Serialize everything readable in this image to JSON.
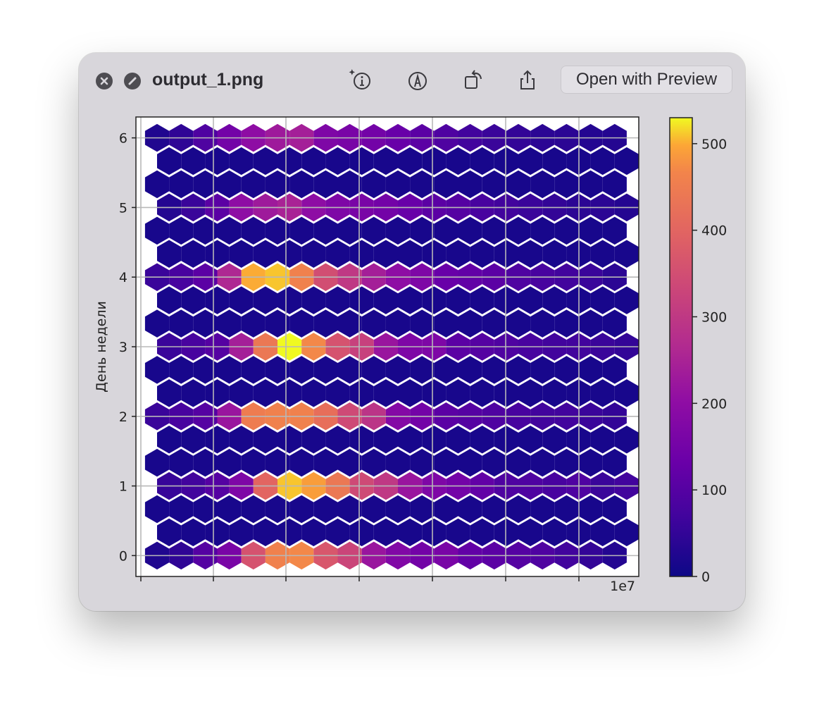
{
  "window": {
    "filename": "output_1.png",
    "open_button_label": "Open with Preview"
  },
  "toolbar": {
    "icons": [
      "close-icon",
      "fullscreen-icon",
      "info-icon",
      "markup-icon",
      "rotate-icon",
      "share-icon"
    ]
  },
  "chart_data": {
    "type": "heatmap",
    "subtype": "hexbin",
    "colormap": "plasma",
    "ylabel": "День недели",
    "xlabel": "",
    "x_offset_label": "1e7",
    "yticks": [
      "0",
      "1",
      "2",
      "3",
      "4",
      "5",
      "6"
    ],
    "ylim": [
      -0.3,
      6.3
    ],
    "colorbar": {
      "ticks": [
        "0",
        "100",
        "200",
        "300",
        "400",
        "500"
      ],
      "range": [
        0,
        530
      ]
    },
    "grid": true,
    "column_count": 20,
    "rows": [
      {
        "y": 0,
        "values": [
          25,
          45,
          100,
          160,
          360,
          460,
          470,
          370,
          330,
          220,
          175,
          150,
          160,
          120,
          110,
          100,
          90,
          70,
          50,
          30
        ]
      },
      {
        "y": 1,
        "values": [
          55,
          70,
          100,
          170,
          400,
          510,
          490,
          440,
          340,
          300,
          220,
          170,
          150,
          120,
          90,
          90,
          80,
          90,
          60,
          70
        ]
      },
      {
        "y": 2,
        "values": [
          60,
          80,
          100,
          220,
          450,
          460,
          460,
          420,
          340,
          290,
          180,
          150,
          110,
          100,
          90,
          80,
          70,
          70,
          60,
          50
        ]
      },
      {
        "y": 3,
        "values": [
          60,
          80,
          100,
          240,
          440,
          530,
          470,
          360,
          320,
          220,
          170,
          170,
          110,
          100,
          90,
          80,
          70,
          70,
          60,
          50
        ]
      },
      {
        "y": 4,
        "values": [
          60,
          80,
          110,
          260,
          500,
          510,
          460,
          350,
          300,
          240,
          200,
          170,
          130,
          120,
          110,
          90,
          80,
          70,
          60,
          40
        ]
      },
      {
        "y": 5,
        "values": [
          30,
          60,
          110,
          200,
          230,
          250,
          200,
          170,
          160,
          150,
          130,
          110,
          100,
          80,
          70,
          60,
          50,
          40,
          40,
          30
        ]
      },
      {
        "y": 6,
        "values": [
          25,
          45,
          90,
          150,
          200,
          230,
          240,
          170,
          160,
          150,
          130,
          110,
          90,
          70,
          60,
          50,
          40,
          40,
          30,
          30
        ]
      }
    ],
    "background_value": 15
  }
}
